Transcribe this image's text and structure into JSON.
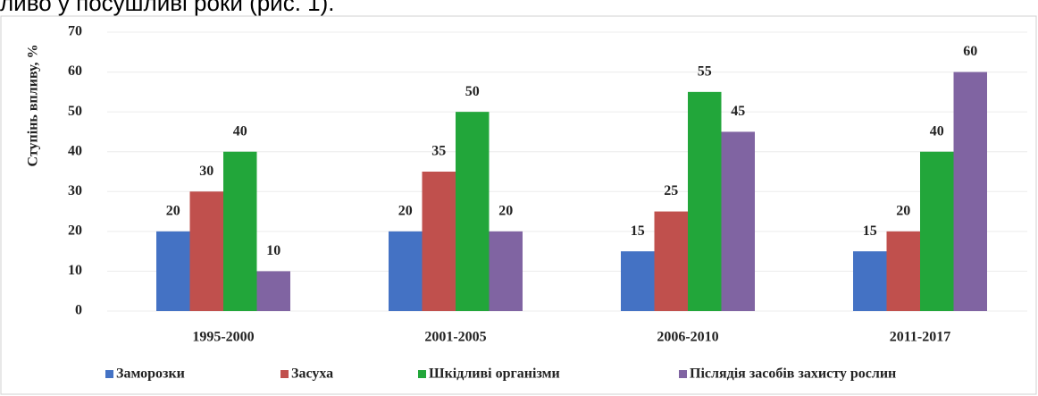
{
  "text_above": "ливо у посушливі роки (рис. 1).",
  "chart_data": {
    "type": "bar",
    "ylabel": "Ступінь впливу, %",
    "categories": [
      "1995-2000",
      "2001-2005",
      "2006-2010",
      "2011-2017"
    ],
    "series": [
      {
        "name": "Заморозки",
        "color": "#4472c4",
        "values": [
          20,
          20,
          15,
          15
        ]
      },
      {
        "name": "Засуха",
        "color": "#c0504d",
        "values": [
          30,
          35,
          25,
          20
        ]
      },
      {
        "name": "Шкідливі організми",
        "color": "#22a63a",
        "values": [
          40,
          50,
          55,
          40
        ]
      },
      {
        "name": "Післядія засобів захисту рослин",
        "color": "#8064a2",
        "values": [
          10,
          20,
          45,
          60
        ]
      }
    ],
    "ylim": [
      0,
      70
    ],
    "yticks": [
      0,
      10,
      20,
      30,
      40,
      50,
      60,
      70
    ],
    "grid": true,
    "legend": "bottom"
  }
}
